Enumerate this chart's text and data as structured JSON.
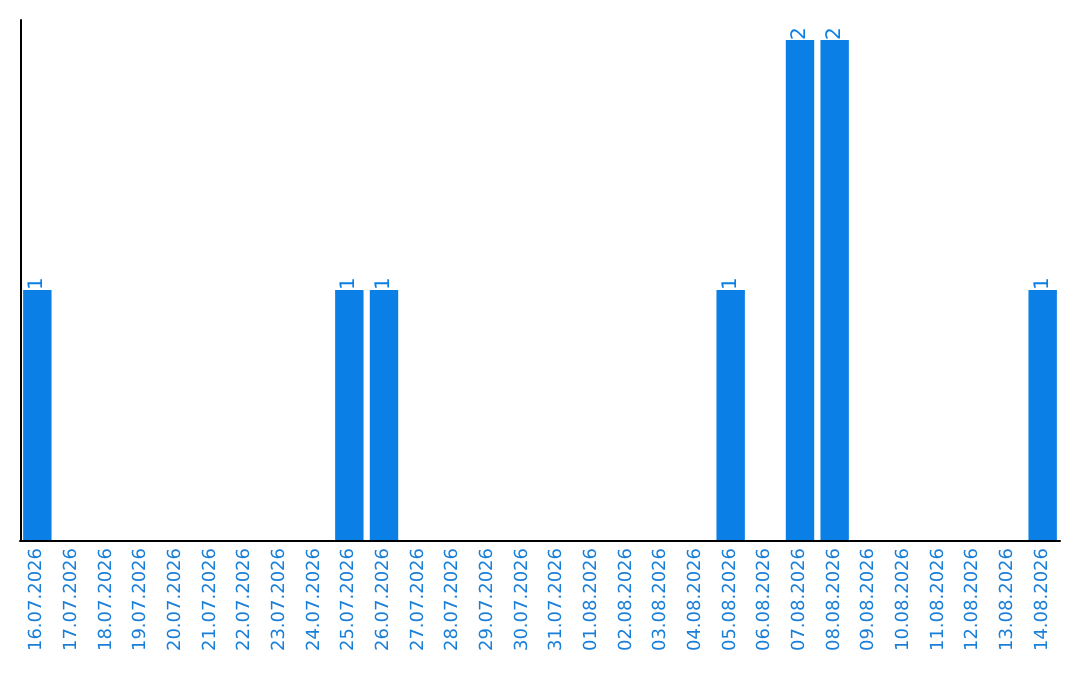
{
  "chart_data": {
    "type": "bar",
    "categories": [
      "16.07.2026",
      "17.07.2026",
      "18.07.2026",
      "19.07.2026",
      "20.07.2026",
      "21.07.2026",
      "22.07.2026",
      "23.07.2026",
      "24.07.2026",
      "25.07.2026",
      "26.07.2026",
      "27.07.2026",
      "28.07.2026",
      "29.07.2026",
      "30.07.2026",
      "31.07.2026",
      "01.08.2026",
      "02.08.2026",
      "03.08.2026",
      "04.08.2026",
      "05.08.2026",
      "06.08.2026",
      "07.08.2026",
      "08.08.2026",
      "09.08.2026",
      "10.08.2026",
      "11.08.2026",
      "12.08.2026",
      "13.08.2026",
      "14.08.2026"
    ],
    "values": [
      1,
      0,
      0,
      0,
      0,
      0,
      0,
      0,
      0,
      1,
      1,
      0,
      0,
      0,
      0,
      0,
      0,
      0,
      0,
      0,
      1,
      0,
      2,
      2,
      0,
      0,
      0,
      0,
      0,
      1
    ],
    "color": "#0a80e6",
    "ylim": [
      0,
      2.08
    ],
    "value_labels": [
      "1",
      null,
      null,
      null,
      null,
      null,
      null,
      null,
      null,
      "1",
      "1",
      null,
      null,
      null,
      null,
      null,
      null,
      null,
      null,
      null,
      "1",
      null,
      "2",
      "2",
      null,
      null,
      null,
      null,
      null,
      "1"
    ],
    "tick_labels": "x",
    "grid": false
  }
}
